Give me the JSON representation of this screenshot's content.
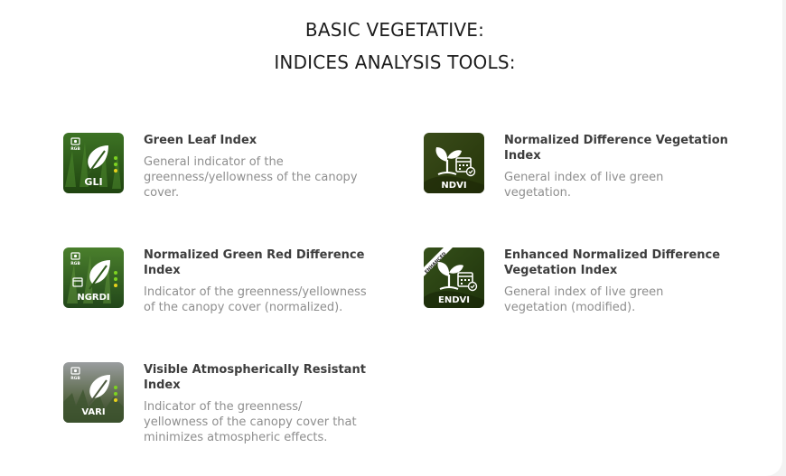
{
  "header": {
    "line1": "BASIC VEGETATIVE:",
    "line2": "INDICES ANALYSIS TOOLS:"
  },
  "tools": [
    {
      "icon_label": "GLI",
      "name": "Green Leaf Index",
      "description": "General indicator of the greenness/yellowness of the canopy cover.",
      "icon": "leaf-icon"
    },
    {
      "icon_label": "NDVI",
      "name": "Normalized Difference Vegetation Index",
      "description": "General index of live green vegetation.",
      "icon": "plant-calendar-icon"
    },
    {
      "icon_label": "NGRDI",
      "name": "Normalized Green Red Difference Index",
      "description": "Indicator of the greenness/yellowness of the canopy cover (normalized).",
      "icon": "leaf-icon"
    },
    {
      "icon_label": "ENDVI",
      "badge": "ENHANCED",
      "name": "Enhanced Normalized Difference Vegetation Index",
      "description": "General index of live green vegetation (modified).",
      "icon": "plant-calendar-icon"
    },
    {
      "icon_label": "VARI",
      "name": "Visible Atmospherically Resistant Index",
      "description": "Indicator of the greenness/ yellowness of the canopy cover that minimizes atmospheric effects.",
      "icon": "leaf-icon"
    }
  ],
  "rgb_badge": "RGB",
  "colors": {
    "title": "#1c1c1c",
    "tool_name": "#3d3d3d",
    "description": "#8e8e8e",
    "icon_green": "#2f5a1c",
    "icon_dark_green": "#2b3e12",
    "icon_gray": "#6b6e70",
    "indicator_green": "#7ed321",
    "indicator_yellow": "#e8d21c"
  }
}
